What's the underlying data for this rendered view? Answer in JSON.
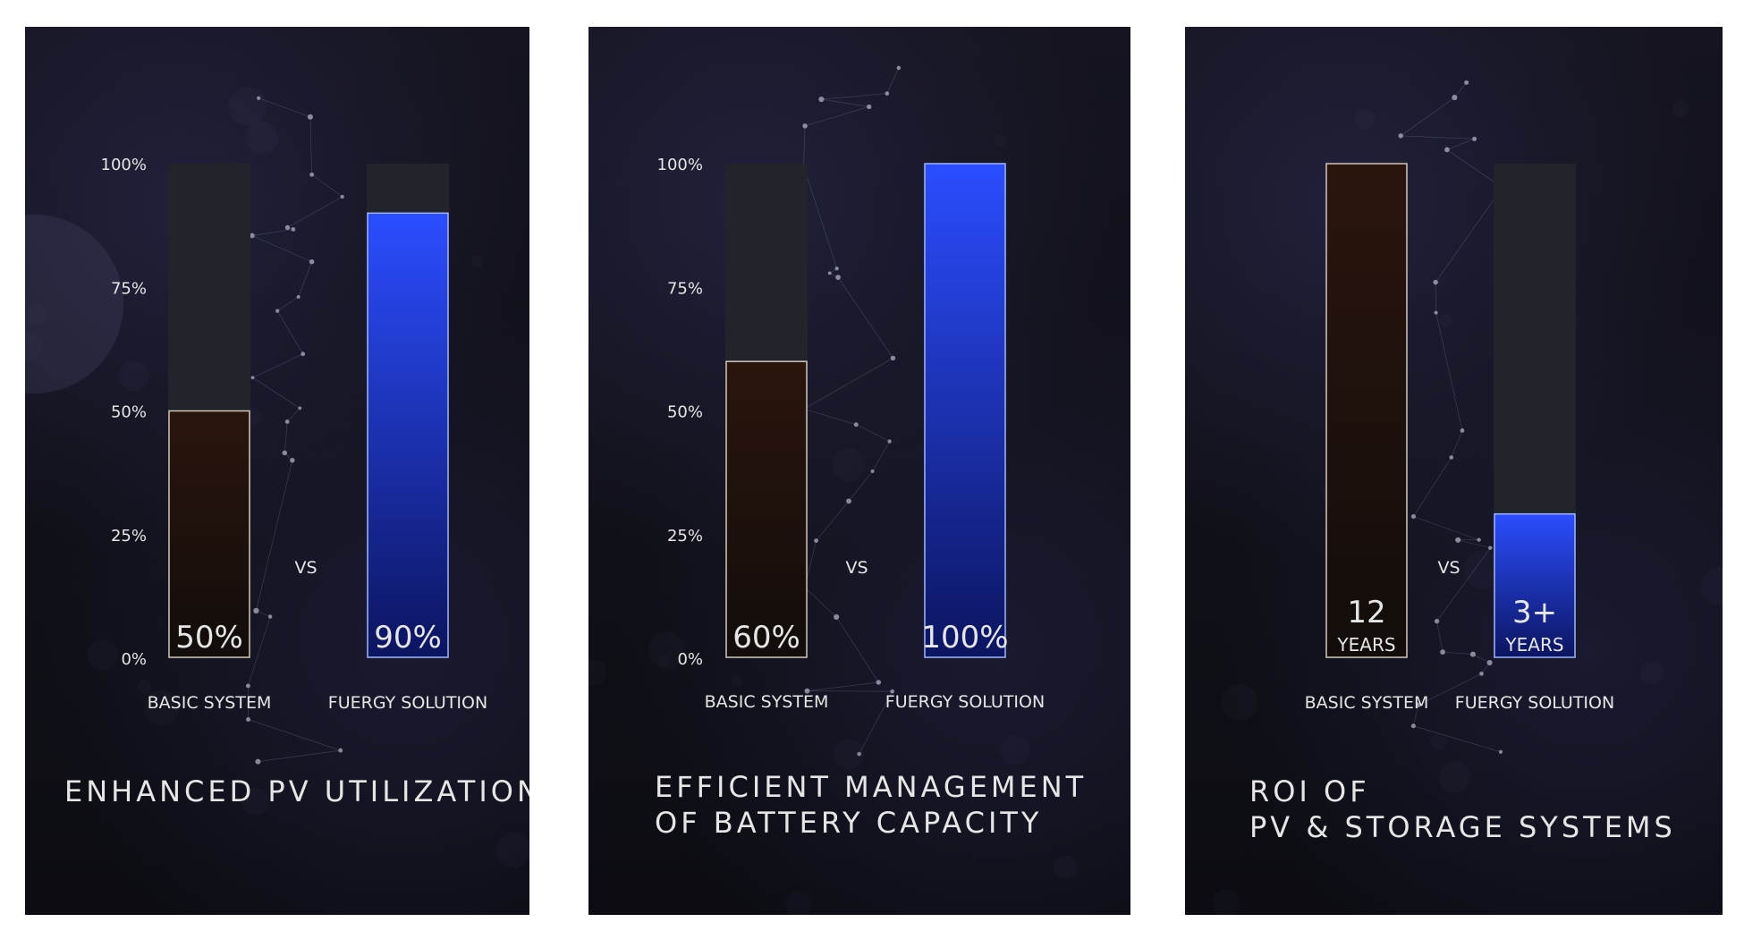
{
  "chart_data": [
    {
      "type": "bar",
      "title": [
        "ENHANCED PV UTILIZATION"
      ],
      "yticks": [
        "100%",
        "75%",
        "50%",
        "25%",
        "0%"
      ],
      "ylim": [
        0,
        100
      ],
      "categories": [
        "BASIC SYSTEM",
        "FUERGY SOLUTION"
      ],
      "values": [
        50,
        90
      ],
      "value_labels": [
        [
          "50%"
        ],
        [
          "90%"
        ]
      ],
      "separator": "VS"
    },
    {
      "type": "bar",
      "title": [
        "EFFICIENT MANAGEMENT",
        "OF BATTERY CAPACITY"
      ],
      "yticks": [
        "100%",
        "75%",
        "50%",
        "25%",
        "0%"
      ],
      "ylim": [
        0,
        100
      ],
      "categories": [
        "BASIC SYSTEM",
        "FUERGY SOLUTION"
      ],
      "values": [
        60,
        100
      ],
      "value_labels": [
        [
          "60%"
        ],
        [
          "100%"
        ]
      ],
      "separator": "VS"
    },
    {
      "type": "bar",
      "title": [
        "ROI OF",
        "PV & STORAGE SYSTEMS"
      ],
      "yticks": [],
      "ylim": [
        0,
        12
      ],
      "categories": [
        "BASIC SYSTEM",
        "FUERGY SOLUTION"
      ],
      "values": [
        12,
        3.5
      ],
      "value_labels": [
        [
          "12",
          "YEARS"
        ],
        [
          "3+",
          "YEARS"
        ]
      ],
      "separator": "VS"
    }
  ],
  "colors": {
    "track": "#22242b",
    "basic_top": "#2a150d",
    "basic_bottom": "#120d0b",
    "basic_stroke": "#cfc6bb",
    "fuergy_top": "#2b4dff",
    "fuergy_bottom": "#0c1560",
    "fuergy_stroke": "#9fb3ff",
    "text": "#e6e6e6"
  }
}
